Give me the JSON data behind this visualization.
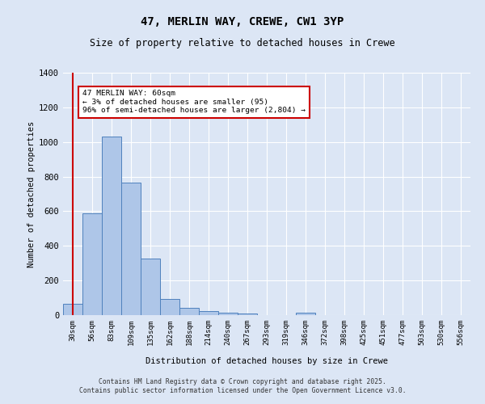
{
  "title_line1": "47, MERLIN WAY, CREWE, CW1 3YP",
  "title_line2": "Size of property relative to detached houses in Crewe",
  "xlabel": "Distribution of detached houses by size in Crewe",
  "ylabel": "Number of detached properties",
  "categories": [
    "30sqm",
    "56sqm",
    "83sqm",
    "109sqm",
    "135sqm",
    "162sqm",
    "188sqm",
    "214sqm",
    "240sqm",
    "267sqm",
    "293sqm",
    "319sqm",
    "346sqm",
    "372sqm",
    "398sqm",
    "425sqm",
    "451sqm",
    "477sqm",
    "503sqm",
    "530sqm",
    "556sqm"
  ],
  "values": [
    65,
    590,
    1030,
    765,
    325,
    95,
    40,
    25,
    15,
    10,
    0,
    0,
    15,
    0,
    0,
    0,
    0,
    0,
    0,
    0,
    0
  ],
  "bar_color": "#aec6e8",
  "bar_edge_color": "#4f81bd",
  "vline_color": "#cc0000",
  "vline_x_index": 0.5,
  "annotation_text": "47 MERLIN WAY: 60sqm\n← 3% of detached houses are smaller (95)\n96% of semi-detached houses are larger (2,804) →",
  "annotation_box_color": "#ffffff",
  "annotation_box_edge": "#cc0000",
  "ylim": [
    0,
    1400
  ],
  "yticks": [
    0,
    200,
    400,
    600,
    800,
    1000,
    1200,
    1400
  ],
  "background_color": "#dce6f5",
  "grid_color": "#ffffff",
  "fig_facecolor": "#dce6f5",
  "footer_line1": "Contains HM Land Registry data © Crown copyright and database right 2025.",
  "footer_line2": "Contains public sector information licensed under the Open Government Licence v3.0."
}
